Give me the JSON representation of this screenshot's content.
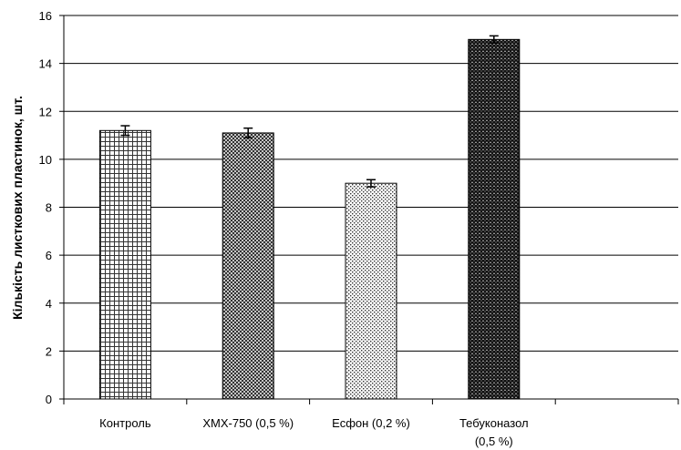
{
  "chart_data": {
    "type": "bar",
    "title": "",
    "xlabel": "",
    "ylabel": "Кількість листкових пластинок, шт.",
    "ylim": [
      0,
      16
    ],
    "y_ticks": [
      0,
      2,
      4,
      6,
      8,
      10,
      12,
      14,
      16
    ],
    "grid": true,
    "legend": "none",
    "categories": [
      [
        "Контроль"
      ],
      [
        "ХМХ-750 (0,5 %)"
      ],
      [
        "Есфон (0,2 %)"
      ],
      [
        "Тебуконазол",
        "(0,5 %)"
      ]
    ],
    "series": [
      {
        "values": [
          11.2,
          11.1,
          9.0,
          15.0
        ],
        "errors": [
          0.2,
          0.2,
          0.15,
          0.15
        ],
        "patterns": [
          "grid",
          "diagonal-cross",
          "dots",
          "dense-cross"
        ]
      }
    ]
  }
}
